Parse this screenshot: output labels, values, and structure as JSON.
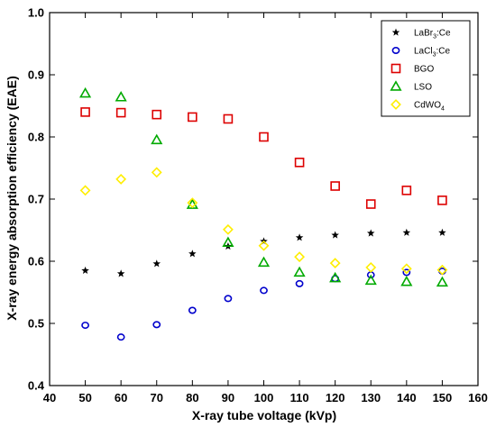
{
  "chart_data": {
    "type": "scatter",
    "xlabel": "X-ray tube voltage (kVp)",
    "ylabel": "X-ray energy absorption efficiency (EAE)",
    "xlim": [
      40,
      160
    ],
    "ylim": [
      0.4,
      1.0
    ],
    "xticks": [
      "40",
      "50",
      "60",
      "70",
      "80",
      "90",
      "100",
      "110",
      "120",
      "130",
      "140",
      "150",
      "160"
    ],
    "yticks": [
      "0.4",
      "0.5",
      "0.6",
      "0.7",
      "0.8",
      "0.9",
      "1.0"
    ],
    "grid": false,
    "legend_position": "top-right",
    "series": [
      {
        "name": "LaBr3:Ce",
        "name_base": "LaBr",
        "name_sub": "3",
        "name_tail": ":Ce",
        "marker": "star",
        "color": "#000000",
        "x": [
          50,
          60,
          70,
          80,
          90,
          100,
          110,
          120,
          130,
          140,
          150
        ],
        "y": [
          0.585,
          0.58,
          0.596,
          0.612,
          0.624,
          0.632,
          0.638,
          0.642,
          0.645,
          0.646,
          0.646
        ]
      },
      {
        "name": "LaCl3:Ce",
        "name_base": "LaCl",
        "name_sub": "3",
        "name_tail": ":Ce",
        "marker": "circle",
        "color": "#0000cc",
        "x": [
          50,
          60,
          70,
          80,
          90,
          100,
          110,
          120,
          130,
          140,
          150
        ],
        "y": [
          0.497,
          0.478,
          0.498,
          0.521,
          0.54,
          0.553,
          0.564,
          0.572,
          0.578,
          0.582,
          0.584
        ]
      },
      {
        "name": "BGO",
        "name_base": "BGO",
        "name_sub": "",
        "name_tail": "",
        "marker": "square",
        "color": "#dd0000",
        "x": [
          50,
          60,
          70,
          80,
          90,
          100,
          110,
          120,
          130,
          140,
          150
        ],
        "y": [
          0.84,
          0.839,
          0.836,
          0.832,
          0.829,
          0.8,
          0.759,
          0.721,
          0.692,
          0.714,
          0.698
        ]
      },
      {
        "name": "LSO",
        "name_base": "LSO",
        "name_sub": "",
        "name_tail": "",
        "marker": "triangle",
        "color": "#00aa00",
        "x": [
          50,
          60,
          70,
          80,
          90,
          100,
          110,
          120,
          130,
          140,
          150
        ],
        "y": [
          0.87,
          0.864,
          0.795,
          0.691,
          0.63,
          0.598,
          0.582,
          0.573,
          0.569,
          0.567,
          0.566
        ]
      },
      {
        "name": "CdWO4",
        "name_base": "CdWO",
        "name_sub": "4",
        "name_tail": "",
        "marker": "diamond",
        "color": "#ffee00",
        "x": [
          50,
          60,
          70,
          80,
          90,
          100,
          110,
          120,
          130,
          140,
          150
        ],
        "y": [
          0.714,
          0.732,
          0.743,
          0.694,
          0.651,
          0.625,
          0.607,
          0.597,
          0.59,
          0.588,
          0.586
        ]
      }
    ]
  }
}
